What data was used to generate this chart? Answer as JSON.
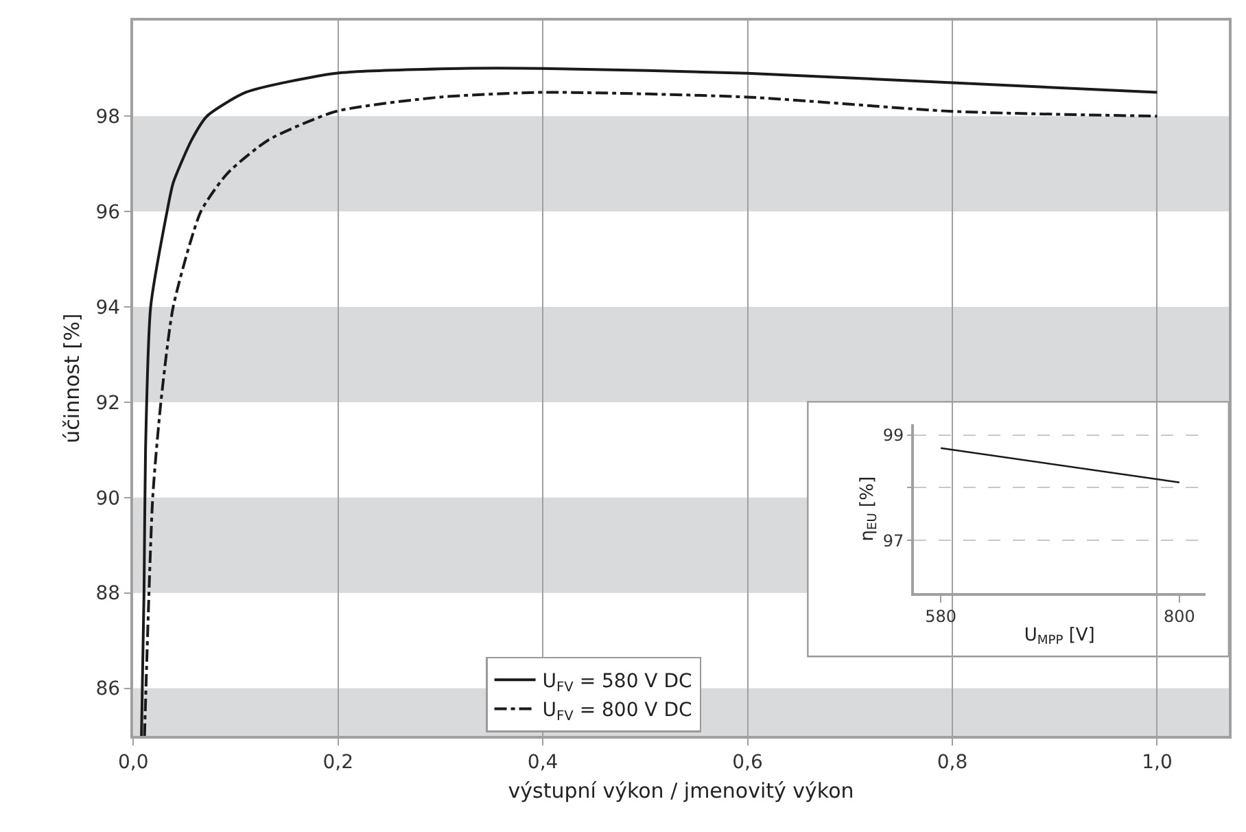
{
  "chart_data": [
    {
      "type": "line",
      "xlabel": "výstupní výkon / jmenovitý výkon",
      "ylabel": "účinnost [%]",
      "xlim": [
        0,
        1.07
      ],
      "ylim": [
        85,
        100
      ],
      "xticks": [
        {
          "value": 0,
          "label": "0,0"
        },
        {
          "value": 0.2,
          "label": "0,2"
        },
        {
          "value": 0.4,
          "label": "0,4"
        },
        {
          "value": 0.6,
          "label": "0,6"
        },
        {
          "value": 0.8,
          "label": "0,8"
        },
        {
          "value": 1.0,
          "label": "1,0"
        }
      ],
      "yticks": [
        86,
        88,
        90,
        92,
        94,
        96,
        98
      ],
      "grid": "x",
      "legend": "bottom",
      "bands": [
        {
          "axis": "y",
          "from": 85,
          "to": 86,
          "color": "#d9dadc"
        },
        {
          "axis": "y",
          "from": 88,
          "to": 90,
          "color": "#d9dadc"
        },
        {
          "axis": "y",
          "from": 92,
          "to": 94,
          "color": "#d9dadc"
        },
        {
          "axis": "y",
          "from": 96,
          "to": 98,
          "color": "#d9dadc"
        }
      ],
      "series": [
        {
          "name": "U$_{FV}$ = 580 V DC",
          "color": "#1a1a1a",
          "line_style": "solid",
          "x": [
            0.008,
            0.0105,
            0.012,
            0.017,
            0.033,
            0.039,
            0.057,
            0.072,
            0.11,
            0.198,
            0.32,
            0.4,
            0.6,
            0.8,
            1.0
          ],
          "values": [
            85,
            88,
            91,
            94,
            96,
            96.6,
            97.5,
            98.0,
            98.5,
            98.9,
            99.0,
            99.0,
            98.9,
            98.7,
            98.5
          ]
        },
        {
          "name": "U$_{FV}$ = 800 V DC",
          "color": "#1a1a1a",
          "line_style": "dashed",
          "x": [
            0.011,
            0.019,
            0.027,
            0.039,
            0.066,
            0.092,
            0.132,
            0.198,
            0.3,
            0.4,
            0.6,
            0.8,
            1.0
          ],
          "values": [
            85,
            90,
            92,
            94,
            96,
            96.8,
            97.5,
            98.1,
            98.4,
            98.5,
            98.4,
            98.1,
            98.0
          ]
        }
      ]
    },
    {
      "type": "line",
      "xlabel": "U$_{MPP}$ [V]",
      "ylabel": "η$_{EU}$ [%]",
      "xlim": [
        555,
        824
      ],
      "ylim": [
        96,
        99.2
      ],
      "xticks": [
        580,
        800
      ],
      "yticks": [
        97,
        {
          "value": 98,
          "label": null
        },
        99
      ],
      "grid": "y",
      "series": [
        {
          "color": "#1a1a1a",
          "x": [
            580,
            800
          ],
          "values": [
            98.75,
            98.1
          ]
        }
      ]
    }
  ]
}
